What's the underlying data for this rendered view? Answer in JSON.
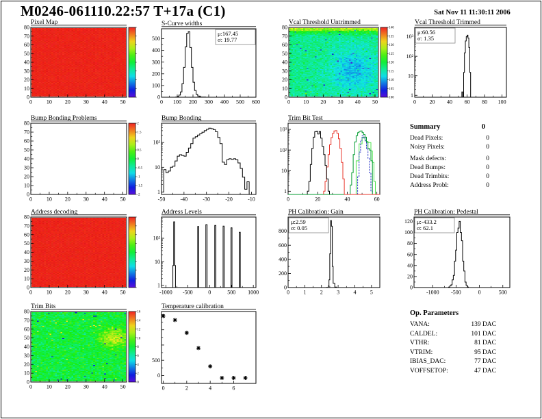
{
  "header": {
    "title": "M0246-061110.22:57 T+17a (C1)",
    "date": "Sat Nov 11 11:30:11 2006"
  },
  "summary": {
    "title": "Summary",
    "total": "0",
    "rows": [
      {
        "label": "Dead Pixels:",
        "value": "0"
      },
      {
        "label": "Noisy Pixels:",
        "value": "0"
      },
      {
        "label": "Mask defects:",
        "value": "0"
      },
      {
        "label": "Dead Bumps:",
        "value": "0"
      },
      {
        "label": "Dead Trimbits:",
        "value": "0"
      },
      {
        "label": "Address Probl:",
        "value": "0"
      }
    ]
  },
  "op_parameters": {
    "title": "Op. Parameters",
    "rows": [
      {
        "label": "VANA:",
        "value": "139 DAC"
      },
      {
        "label": "CALDEL:",
        "value": "101 DAC"
      },
      {
        "label": "VTHR:",
        "value": "81 DAC"
      },
      {
        "label": "VTRIM:",
        "value": "95 DAC"
      },
      {
        "label": "IBIAS_DAC:",
        "value": "77 DAC"
      },
      {
        "label": "VOFFSETOP:",
        "value": "47 DAC"
      }
    ]
  },
  "colors": {
    "frame": "#000000",
    "heat_red": "#f23b26",
    "hist_line": "#000000",
    "palette": "rainbow(purple-blue-cyan-green-yellow-orange-red)"
  },
  "chart_data": [
    {
      "id": "pixel_map",
      "title": "Pixel Map",
      "type": "heatmap",
      "variant": "solid_red",
      "xlim": [
        0,
        52
      ],
      "ylim": [
        0,
        80
      ],
      "xticks": [
        0,
        10,
        20,
        30,
        40,
        50
      ],
      "yticks": [
        0,
        10,
        20,
        30,
        40,
        50,
        60,
        70,
        80
      ],
      "colorbar": {
        "labels": []
      }
    },
    {
      "id": "s_curve_widths",
      "title": "S-Curve widths",
      "type": "histogram",
      "xlim": [
        0,
        600
      ],
      "ylim": [
        0,
        585
      ],
      "xticks": [
        0,
        100,
        200,
        300,
        400,
        500,
        600
      ],
      "yticks": [
        0,
        100,
        200,
        300,
        400,
        500
      ],
      "stats": {
        "mu": "μ:167.45",
        "sigma": "σ: 19.77"
      },
      "edges": [
        90,
        100,
        110,
        120,
        130,
        140,
        150,
        160,
        170,
        180,
        190,
        200,
        210,
        220,
        230,
        240,
        250,
        260,
        270,
        280,
        290
      ],
      "counts": [
        2,
        6,
        18,
        45,
        115,
        255,
        430,
        545,
        560,
        425,
        255,
        128,
        58,
        24,
        10,
        4,
        2,
        1,
        1,
        0
      ]
    },
    {
      "id": "vcal_untrimmed",
      "title": "Vcal Threshold Untrimmed",
      "type": "heatmap",
      "variant": "noise_vcal",
      "value_range": [
        100,
        140
      ],
      "xlim": [
        0,
        52
      ],
      "ylim": [
        0,
        80
      ],
      "xticks": [
        0,
        10,
        20,
        30,
        40,
        50
      ],
      "yticks": [
        0,
        10,
        20,
        30,
        40,
        50,
        60,
        70,
        80
      ],
      "colorbar": {
        "labels": [
          "140",
          "135",
          "130",
          "125",
          "120",
          "115",
          "110",
          "105",
          "100"
        ]
      }
    },
    {
      "id": "vcal_trimmed",
      "title": "Vcal Threshold Trimmed",
      "type": "histogram",
      "ylog": true,
      "xlim": [
        0,
        105
      ],
      "ylim": [
        0.8,
        3000
      ],
      "xticks": [
        0,
        20,
        40,
        60,
        80,
        100
      ],
      "stats": {
        "mu": "μ:60.56",
        "sigma": "σ: 1.35"
      },
      "edges": [
        54,
        55,
        56,
        57,
        58,
        59,
        60,
        61,
        62,
        63,
        64,
        65
      ],
      "counts": [
        1.5,
        0,
        15,
        150,
        600,
        1000,
        1200,
        850,
        280,
        15,
        0
      ]
    },
    {
      "id": "bump_problems",
      "title": "Bump Bonding Problems",
      "type": "heatmap",
      "variant": "empty",
      "xlim": [
        0,
        52
      ],
      "ylim": [
        0,
        80
      ],
      "xticks": [
        0,
        10,
        20,
        30,
        40,
        50
      ],
      "yticks": [
        0,
        10,
        20,
        30,
        40,
        50,
        60,
        70,
        80
      ],
      "colorbar": {
        "labels": [
          "2",
          "1.5",
          "1",
          "0.5",
          "0",
          "-0.5",
          "-1",
          "-1.5",
          "-2"
        ]
      }
    },
    {
      "id": "bump_bonding",
      "title": "Bump Bonding",
      "type": "histogram",
      "ylog": true,
      "xlim": [
        -50,
        -8
      ],
      "ylim": [
        0.8,
        600
      ],
      "xticks": [
        -50,
        -40,
        -30,
        -20,
        -10
      ],
      "edges": [
        -50,
        -49,
        -48,
        -47,
        -46,
        -45,
        -44,
        -43,
        -42,
        -41,
        -40,
        -39,
        -38,
        -37,
        -36,
        -35,
        -34,
        -33,
        -32,
        -31,
        -30,
        -29,
        -28,
        -27,
        -26,
        -25,
        -24,
        -23,
        -22,
        -21,
        -20,
        -19,
        -18,
        -17,
        -16,
        -15,
        -14,
        -13,
        -12,
        -11,
        -10
      ],
      "counts": [
        1,
        8,
        6,
        7,
        10,
        11,
        18,
        28,
        32,
        30,
        28,
        40,
        60,
        90,
        150,
        170,
        200,
        230,
        260,
        300,
        340,
        380,
        360,
        330,
        270,
        160,
        90,
        16,
        13,
        20,
        22,
        21,
        22,
        20,
        15,
        9,
        4,
        1.3,
        2.6,
        0
      ]
    },
    {
      "id": "trim_bit_test",
      "title": "Trim Bit Test",
      "type": "histogram",
      "ylog": true,
      "xlim": [
        0,
        62
      ],
      "ylim": [
        0.7,
        2000
      ],
      "xticks": [
        0,
        20,
        40,
        60
      ],
      "series": [
        {
          "name": "light_green",
          "color": "#4fe34f",
          "edges": [
            44,
            46,
            48,
            50,
            51,
            52,
            53,
            54,
            55,
            56,
            57,
            58,
            59
          ],
          "counts": [
            0,
            30,
            200,
            420,
            380,
            300,
            260,
            230,
            230,
            90,
            25,
            3
          ]
        },
        {
          "name": "blue",
          "color": "#2a35c8",
          "dash": "2.5,1.5",
          "edges": [
            47,
            48,
            49,
            50,
            51,
            52,
            53,
            54,
            55,
            56,
            57
          ],
          "counts": [
            5,
            80,
            300,
            500,
            420,
            280,
            120,
            40,
            8,
            1
          ]
        },
        {
          "name": "green",
          "color": "#009b2f",
          "edges": [
            0,
            42,
            43,
            44,
            45,
            46,
            47,
            48,
            49,
            50,
            51,
            52,
            53,
            54,
            55,
            56,
            57,
            62
          ],
          "counts": [
            0,
            2,
            8,
            60,
            250,
            500,
            700,
            820,
            840,
            700,
            560,
            420,
            250,
            120,
            100,
            30,
            0
          ]
        },
        {
          "name": "red",
          "color": "#e8342a",
          "edges": [
            24,
            25,
            26,
            27,
            28,
            29,
            30,
            31,
            32,
            33,
            34,
            35,
            36,
            37,
            38,
            62
          ],
          "counts": [
            1,
            3,
            15,
            60,
            180,
            400,
            650,
            850,
            870,
            650,
            350,
            120,
            25,
            4,
            0
          ]
        },
        {
          "name": "black",
          "color": "#000000",
          "edges": [
            13,
            14,
            15,
            16,
            17,
            18,
            19,
            20,
            21,
            22,
            23,
            24,
            25,
            26,
            27,
            28
          ],
          "counts": [
            1,
            3,
            20,
            120,
            420,
            780,
            830,
            600,
            800,
            380,
            150,
            60,
            18,
            4,
            1
          ]
        }
      ]
    },
    {
      "id": "address_decoding",
      "title": "Address decoding",
      "type": "heatmap",
      "variant": "solid_red",
      "xlim": [
        0,
        52
      ],
      "ylim": [
        0,
        80
      ],
      "xticks": [
        0,
        10,
        20,
        30,
        40,
        50
      ],
      "yticks": [
        0,
        10,
        20,
        30,
        40,
        50,
        60,
        70,
        80
      ],
      "colorbar": {
        "labels": []
      }
    },
    {
      "id": "address_levels",
      "title": "Address Levels",
      "type": "histogram",
      "ylog": true,
      "xlim": [
        -1100,
        1060
      ],
      "ylim": [
        0.8,
        800
      ],
      "xticks": [
        -1000,
        -500,
        0,
        500,
        1000
      ],
      "edges": [
        -840,
        -822,
        -800,
        -780,
        -272,
        -248,
        -85,
        -58,
        118,
        142,
        308,
        332,
        488,
        512,
        678,
        702
      ],
      "counts": [
        7,
        500,
        7,
        0,
        320,
        0,
        380,
        0,
        350,
        0,
        330,
        0,
        280,
        0,
        180
      ]
    },
    {
      "id": "ph_gain",
      "title": "PH Calibration: Gain",
      "type": "histogram",
      "xlim": [
        0,
        5.5
      ],
      "ylim": [
        0,
        1000
      ],
      "xticks": [
        0,
        1,
        2,
        3,
        4,
        5
      ],
      "yticks": [
        0,
        200,
        400,
        600,
        800
      ],
      "stats": {
        "mu": "μ:2.59",
        "sigma": "σ: 0.05"
      },
      "edges": [
        2.3,
        2.4,
        2.45,
        2.5,
        2.55,
        2.6,
        2.65,
        2.7,
        2.8,
        2.9
      ],
      "counts": [
        3,
        20,
        110,
        480,
        950,
        870,
        300,
        60,
        8
      ]
    },
    {
      "id": "ph_pedestal",
      "title": "PH Calibration: Pedestal",
      "type": "histogram",
      "xlim": [
        -1400,
        650
      ],
      "ylim": [
        0,
        128
      ],
      "xticks": [
        -1000,
        -500,
        0,
        500
      ],
      "yticks": [
        0,
        20,
        40,
        60,
        80,
        100,
        120
      ],
      "stats": {
        "mu": "μ:-433.2",
        "sigma": "σ: 62.1"
      },
      "edges": [
        -660,
        -635,
        -610,
        -585,
        -560,
        -535,
        -510,
        -485,
        -460,
        -435,
        -410,
        -385,
        -360,
        -335,
        -310,
        -285,
        -260,
        -235
      ],
      "counts": [
        1,
        3,
        5,
        14,
        22,
        48,
        68,
        100,
        108,
        120,
        100,
        85,
        48,
        30,
        10,
        4,
        1
      ]
    },
    {
      "id": "trim_bits",
      "title": "Trim Bits",
      "type": "heatmap",
      "variant": "noise_trim",
      "value_range": [
        0,
        16
      ],
      "xlim": [
        0,
        52
      ],
      "ylim": [
        0,
        80
      ],
      "xticks": [
        0,
        10,
        20,
        30,
        40,
        50
      ],
      "yticks": [
        0,
        10,
        20,
        30,
        40,
        50,
        60,
        70,
        80
      ],
      "colorbar": {
        "labels": [
          "16",
          "14",
          "12",
          "10",
          "8",
          "6",
          "4",
          "2",
          "0"
        ]
      }
    },
    {
      "id": "temp_calibration",
      "title": "Temperature calibration",
      "type": "scatter",
      "xlim": [
        -0.15,
        7.9
      ],
      "ylim": [
        -260,
        2100
      ],
      "xticks": [
        0,
        2,
        4,
        6
      ],
      "yticks": [
        0,
        500,
        1000,
        1500,
        2000
      ],
      "ytick_labels": [
        "0",
        "500",
        "",
        "",
        ""
      ],
      "points": [
        [
          0,
          1950
        ],
        [
          1,
          1820
        ],
        [
          2,
          1400
        ],
        [
          3,
          900
        ],
        [
          4,
          300
        ],
        [
          5,
          -80
        ],
        [
          6,
          -80
        ],
        [
          7,
          -80
        ]
      ]
    }
  ]
}
